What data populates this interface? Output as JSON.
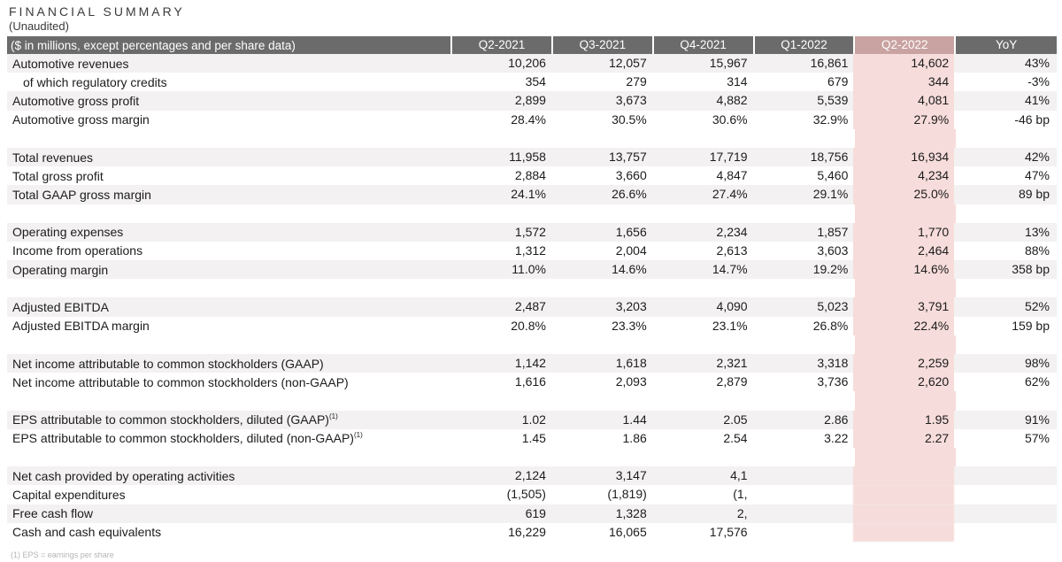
{
  "header": {
    "title": "FINANCIAL SUMMARY",
    "subtitle": "(Unaudited)"
  },
  "columns": {
    "label": "($ in millions, except percentages and per share data)",
    "periods": [
      "Q2-2021",
      "Q3-2021",
      "Q4-2021",
      "Q1-2022",
      "Q2-2022",
      "YoY"
    ]
  },
  "sections": [
    [
      {
        "label": "Automotive revenues",
        "v": [
          "10,206",
          "12,057",
          "15,967",
          "16,861",
          "14,602",
          "43%"
        ]
      },
      {
        "label": "of which regulatory credits",
        "indent": true,
        "v": [
          "354",
          "279",
          "314",
          "679",
          "344",
          "-3%"
        ]
      },
      {
        "label": "Automotive gross profit",
        "v": [
          "2,899",
          "3,673",
          "4,882",
          "5,539",
          "4,081",
          "41%"
        ]
      },
      {
        "label": "Automotive gross margin",
        "v": [
          "28.4%",
          "30.5%",
          "30.6%",
          "32.9%",
          "27.9%",
          "-46 bp"
        ]
      }
    ],
    [
      {
        "label": "Total revenues",
        "v": [
          "11,958",
          "13,757",
          "17,719",
          "18,756",
          "16,934",
          "42%"
        ]
      },
      {
        "label": "Total gross profit",
        "v": [
          "2,884",
          "3,660",
          "4,847",
          "5,460",
          "4,234",
          "47%"
        ]
      },
      {
        "label": "Total GAAP gross margin",
        "v": [
          "24.1%",
          "26.6%",
          "27.4%",
          "29.1%",
          "25.0%",
          "89 bp"
        ]
      }
    ],
    [
      {
        "label": "Operating expenses",
        "v": [
          "1,572",
          "1,656",
          "2,234",
          "1,857",
          "1,770",
          "13%"
        ]
      },
      {
        "label": "Income from operations",
        "v": [
          "1,312",
          "2,004",
          "2,613",
          "3,603",
          "2,464",
          "88%"
        ]
      },
      {
        "label": "Operating margin",
        "v": [
          "11.0%",
          "14.6%",
          "14.7%",
          "19.2%",
          "14.6%",
          "358 bp"
        ]
      }
    ],
    [
      {
        "label": "Adjusted EBITDA",
        "v": [
          "2,487",
          "3,203",
          "4,090",
          "5,023",
          "3,791",
          "52%"
        ]
      },
      {
        "label": "Adjusted EBITDA margin",
        "v": [
          "20.8%",
          "23.3%",
          "23.1%",
          "26.8%",
          "22.4%",
          "159 bp"
        ]
      }
    ],
    [
      {
        "label": "Net income attributable to common stockholders (GAAP)",
        "v": [
          "1,142",
          "1,618",
          "2,321",
          "3,318",
          "2,259",
          "98%"
        ]
      },
      {
        "label": "Net income attributable to common stockholders (non-GAAP)",
        "v": [
          "1,616",
          "2,093",
          "2,879",
          "3,736",
          "2,620",
          "62%"
        ]
      }
    ],
    [
      {
        "label": "EPS attributable to common stockholders, diluted (GAAP)",
        "sup": "(1)",
        "v": [
          "1.02",
          "1.44",
          "2.05",
          "2.86",
          "1.95",
          "91%"
        ]
      },
      {
        "label": "EPS attributable to common stockholders, diluted (non-GAAP)",
        "sup": "(1)",
        "v": [
          "1.45",
          "1.86",
          "2.54",
          "3.22",
          "2.27",
          "57%"
        ]
      }
    ],
    [
      {
        "label": "Net cash provided by operating activities",
        "v": [
          "2,124",
          "3,147",
          "4,1",
          "",
          "",
          ""
        ],
        "blur": [
          3,
          4,
          5
        ]
      },
      {
        "label": "Capital expenditures",
        "v": [
          "(1,505)",
          "(1,819)",
          "(1,",
          "",
          "",
          ""
        ],
        "blur": [
          3,
          4,
          5
        ]
      },
      {
        "label": "Free cash flow",
        "v": [
          "619",
          "1,328",
          "2,",
          "",
          "",
          ""
        ],
        "blur": [
          3,
          4,
          5
        ]
      },
      {
        "label": "Cash and cash equivalents",
        "v": [
          "16,229",
          "16,065",
          "17,576",
          "",
          "",
          ""
        ],
        "blur": [
          3,
          4,
          5
        ]
      }
    ]
  ],
  "footnote": "(1) EPS = earnings per share"
}
